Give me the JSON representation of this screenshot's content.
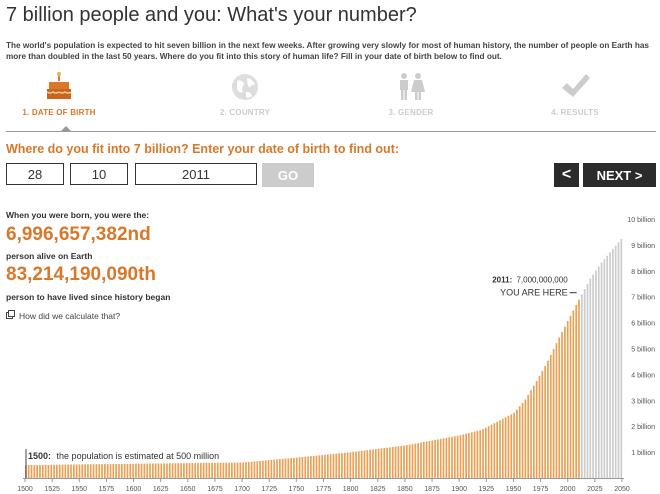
{
  "header": {
    "title": "7 billion people and you: What's your number?",
    "intro": "The world's population is expected to hit seven billion in the next few weeks. After growing very slowly for most of human history, the number of people on Earth has more than doubled in the last 50 years. Where do you fit into this story of human life? Fill in your date of birth below to find out."
  },
  "steps": [
    {
      "label": "1. DATE OF BIRTH",
      "icon": "birthday-cake-icon",
      "active": true
    },
    {
      "label": "2. COUNTRY",
      "icon": "globe-icon",
      "active": false
    },
    {
      "label": "3. GENDER",
      "icon": "male-female-icon",
      "active": false
    },
    {
      "label": "4. RESULTS",
      "icon": "checkmark-icon",
      "active": false
    }
  ],
  "form": {
    "prompt": "Where do you fit into 7 billion? Enter your date of birth to find out:",
    "day": "28",
    "month": "10",
    "year": "2011",
    "go_label": "GO",
    "prev_label": "<",
    "next_label": "NEXT >"
  },
  "result": {
    "born_label": "When you were born, you were the:",
    "alive_number": "6,996,657,382nd",
    "alive_label": "person alive on Earth",
    "lived_number": "83,214,190,090th",
    "lived_label": "person to have lived since history began",
    "calc_link": "How did we calculate that?"
  },
  "colors": {
    "accent": "#d9782b",
    "bar": "#e8a155",
    "future_bar": "#cccccc",
    "dark_button": "#2b2b2b"
  },
  "chart_data": {
    "type": "bar",
    "x_ticks": [
      "1500",
      "1525",
      "1550",
      "1575",
      "1600",
      "1625",
      "1650",
      "1675",
      "1700",
      "1725",
      "1750",
      "1775",
      "1800",
      "1825",
      "1850",
      "1875",
      "1900",
      "1925",
      "1950",
      "1975",
      "2000",
      "2025",
      "2050"
    ],
    "y_ticks": [
      "1 billion",
      "2 billion",
      "3 billion",
      "4 billion",
      "5 billion",
      "6 billion",
      "7 billion",
      "8 billion",
      "9 billion",
      "10 billion"
    ],
    "ylim": [
      0,
      10
    ],
    "series": [
      {
        "x": [
          1500,
          1600,
          1700,
          1750,
          1800,
          1850,
          1900,
          1920,
          1940,
          1950,
          1960,
          1970,
          1980,
          1990,
          2000,
          2011
        ],
        "values": [
          0.5,
          0.55,
          0.6,
          0.79,
          1.0,
          1.26,
          1.65,
          1.86,
          2.3,
          2.52,
          3.02,
          3.7,
          4.44,
          5.31,
          6.12,
          7.0
        ]
      },
      {
        "x": [
          2011,
          2020,
          2030,
          2040,
          2050
        ],
        "values": [
          7.0,
          7.7,
          8.3,
          8.8,
          9.3
        ]
      }
    ],
    "annotations": [
      {
        "year_label": "1500:",
        "text": "the population is estimated at 500 million"
      },
      {
        "year_label": "2011:",
        "text": "7,000,000,000",
        "sub": "YOU ARE HERE"
      }
    ]
  }
}
